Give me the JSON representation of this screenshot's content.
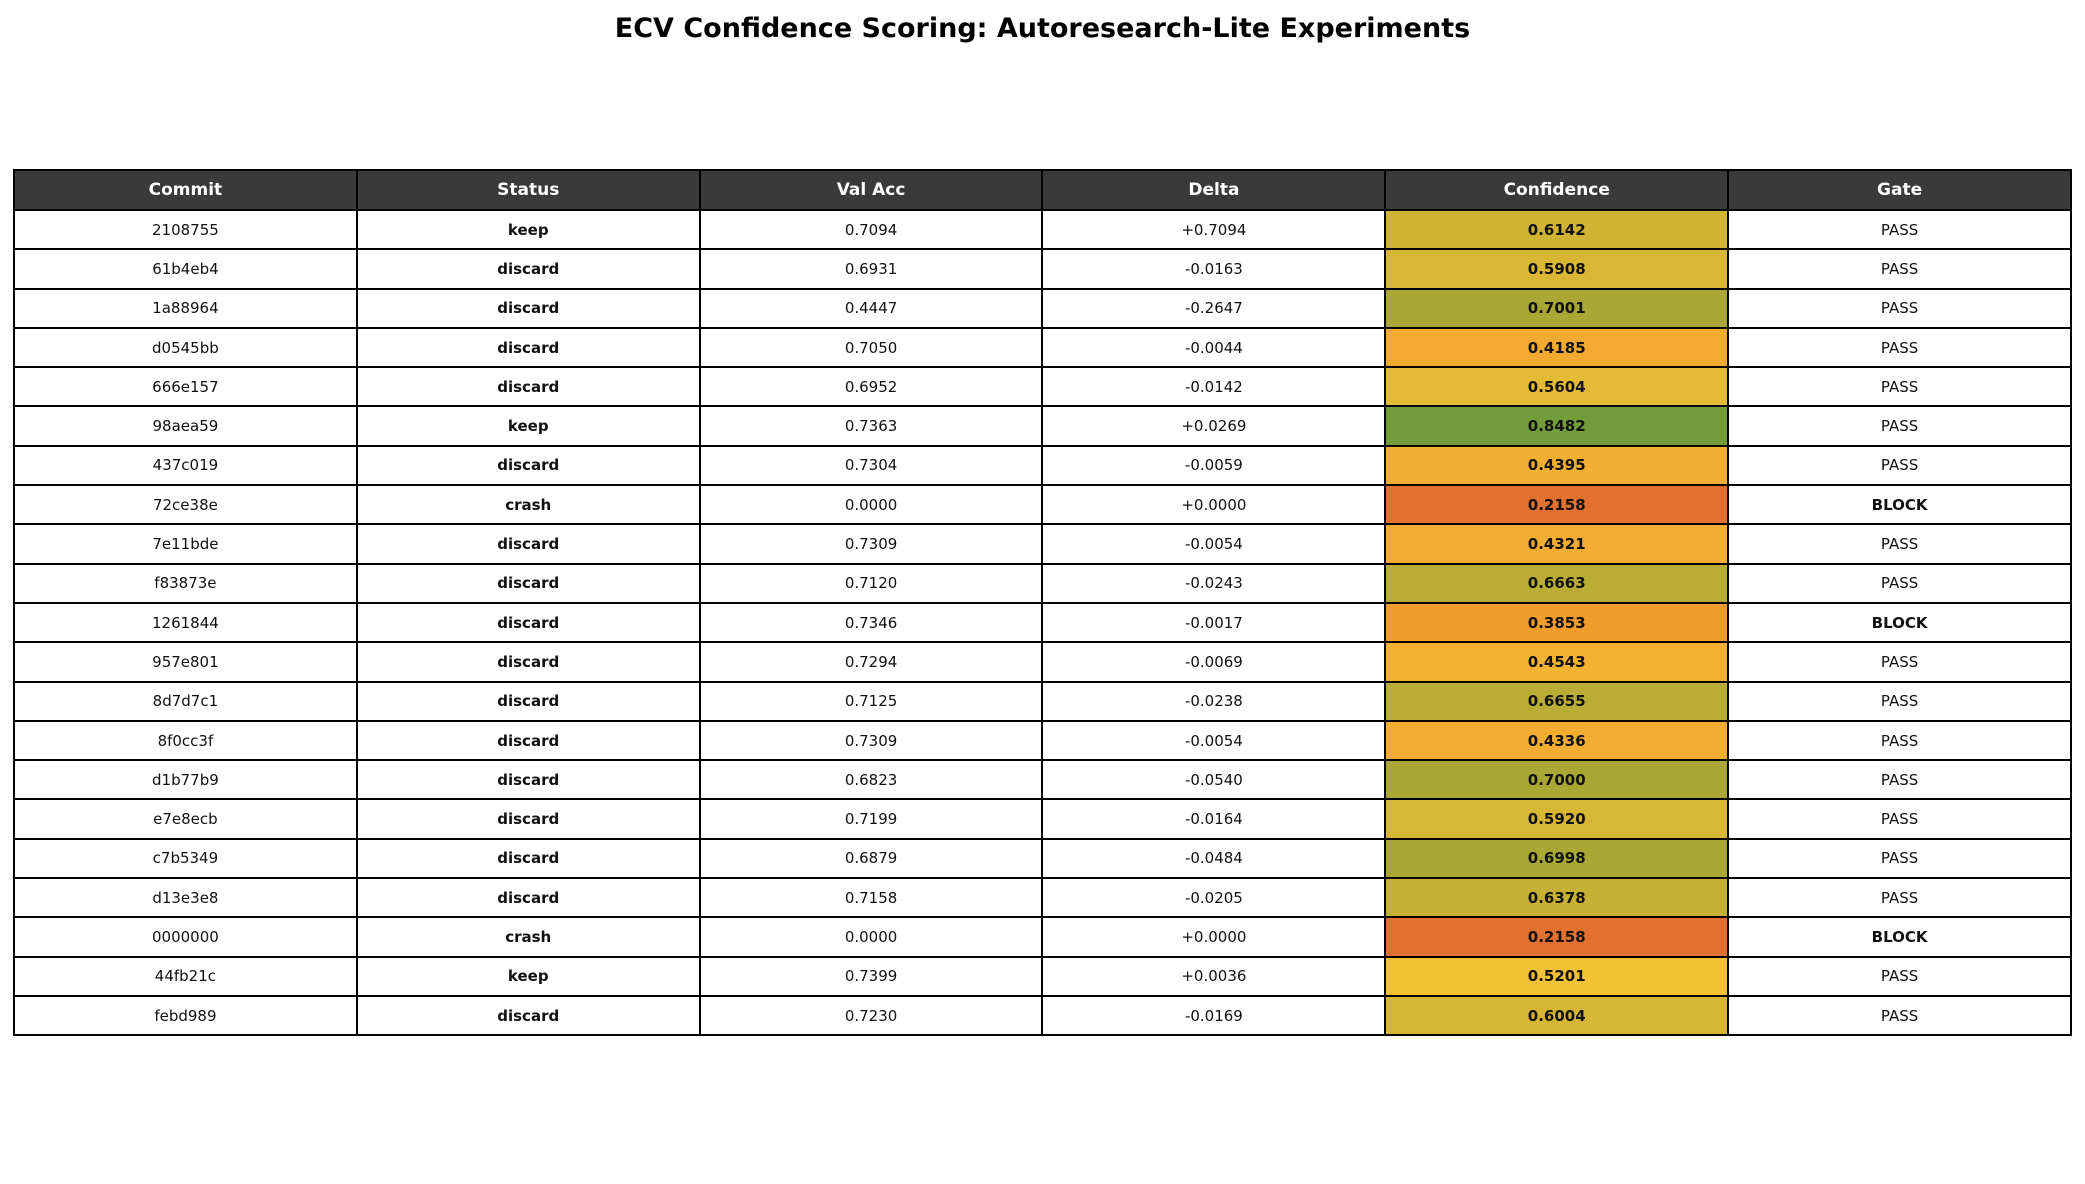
{
  "page": {
    "title": "ECV Confidence Scoring: Autoresearch-Lite Experiments"
  },
  "colors": {
    "header_bg": "#3a3a3a",
    "header_text": "#ffffff",
    "border": "#000000",
    "status_keep": "#2e8b2e",
    "status_discard": "#ee8512",
    "status_crash": "#d63434",
    "gate_pass_text": "#2e8b2e",
    "gate_block_text": "#d62f3a",
    "gate_block_bg": "#ffe4e8",
    "confidence_text": "#ffffff"
  },
  "chart_data": {
    "type": "table",
    "title": "ECV Confidence Scoring: Autoresearch-Lite Experiments",
    "columns": [
      "Commit",
      "Status",
      "Val Acc",
      "Delta",
      "Confidence",
      "Gate"
    ],
    "rows": [
      {
        "commit": "2108755",
        "status": "keep",
        "val_acc": "0.7094",
        "delta": "+0.7094",
        "confidence": "0.6142",
        "confidence_color": "#d1b434",
        "gate": "PASS"
      },
      {
        "commit": "61b4eb4",
        "status": "discard",
        "val_acc": "0.6931",
        "delta": "-0.0163",
        "confidence": "0.5908",
        "confidence_color": "#d9b734",
        "gate": "PASS"
      },
      {
        "commit": "1a88964",
        "status": "discard",
        "val_acc": "0.4447",
        "delta": "-0.2647",
        "confidence": "0.7001",
        "confidence_color": "#aaa835",
        "gate": "PASS"
      },
      {
        "commit": "d0545bb",
        "status": "discard",
        "val_acc": "0.7050",
        "delta": "-0.0044",
        "confidence": "0.4185",
        "confidence_color": "#f3aa31",
        "gate": "PASS"
      },
      {
        "commit": "666e157",
        "status": "discard",
        "val_acc": "0.6952",
        "delta": "-0.0142",
        "confidence": "0.5604",
        "confidence_color": "#e3bb34",
        "gate": "PASS"
      },
      {
        "commit": "98aea59",
        "status": "keep",
        "val_acc": "0.7363",
        "delta": "+0.0269",
        "confidence": "0.8482",
        "confidence_color": "#739c3a",
        "gate": "PASS"
      },
      {
        "commit": "437c019",
        "status": "discard",
        "val_acc": "0.7304",
        "delta": "-0.0059",
        "confidence": "0.4395",
        "confidence_color": "#f3af32",
        "gate": "PASS"
      },
      {
        "commit": "72ce38e",
        "status": "crash",
        "val_acc": "0.0000",
        "delta": "+0.0000",
        "confidence": "0.2158",
        "confidence_color": "#e2702f",
        "gate": "BLOCK"
      },
      {
        "commit": "7e11bde",
        "status": "discard",
        "val_acc": "0.7309",
        "delta": "-0.0054",
        "confidence": "0.4321",
        "confidence_color": "#f3ad32",
        "gate": "PASS"
      },
      {
        "commit": "f83873e",
        "status": "discard",
        "val_acc": "0.7120",
        "delta": "-0.0243",
        "confidence": "0.6663",
        "confidence_color": "#b9ad35",
        "gate": "PASS"
      },
      {
        "commit": "1261844",
        "status": "discard",
        "val_acc": "0.7346",
        "delta": "-0.0017",
        "confidence": "0.3853",
        "confidence_color": "#f09d2e",
        "gate": "BLOCK"
      },
      {
        "commit": "957e801",
        "status": "discard",
        "val_acc": "0.7294",
        "delta": "-0.0069",
        "confidence": "0.4543",
        "confidence_color": "#f3b232",
        "gate": "PASS"
      },
      {
        "commit": "8d7d7c1",
        "status": "discard",
        "val_acc": "0.7125",
        "delta": "-0.0238",
        "confidence": "0.6655",
        "confidence_color": "#baad35",
        "gate": "PASS"
      },
      {
        "commit": "8f0cc3f",
        "status": "discard",
        "val_acc": "0.7309",
        "delta": "-0.0054",
        "confidence": "0.4336",
        "confidence_color": "#f3ad32",
        "gate": "PASS"
      },
      {
        "commit": "d1b77b9",
        "status": "discard",
        "val_acc": "0.6823",
        "delta": "-0.0540",
        "confidence": "0.7000",
        "confidence_color": "#aaa835",
        "gate": "PASS"
      },
      {
        "commit": "e7e8ecb",
        "status": "discard",
        "val_acc": "0.7199",
        "delta": "-0.0164",
        "confidence": "0.5920",
        "confidence_color": "#d8b734",
        "gate": "PASS"
      },
      {
        "commit": "c7b5349",
        "status": "discard",
        "val_acc": "0.6879",
        "delta": "-0.0484",
        "confidence": "0.6998",
        "confidence_color": "#aaa835",
        "gate": "PASS"
      },
      {
        "commit": "d13e3e8",
        "status": "discard",
        "val_acc": "0.7158",
        "delta": "-0.0205",
        "confidence": "0.6378",
        "confidence_color": "#c6b134",
        "gate": "PASS"
      },
      {
        "commit": "0000000",
        "status": "crash",
        "val_acc": "0.0000",
        "delta": "+0.0000",
        "confidence": "0.2158",
        "confidence_color": "#e2702f",
        "gate": "BLOCK"
      },
      {
        "commit": "44fb21c",
        "status": "keep",
        "val_acc": "0.7399",
        "delta": "+0.0036",
        "confidence": "0.5201",
        "confidence_color": "#f2c135",
        "gate": "PASS"
      },
      {
        "commit": "febd989",
        "status": "discard",
        "val_acc": "0.7230",
        "delta": "-0.0169",
        "confidence": "0.6004",
        "confidence_color": "#d6b634",
        "gate": "PASS"
      }
    ]
  }
}
